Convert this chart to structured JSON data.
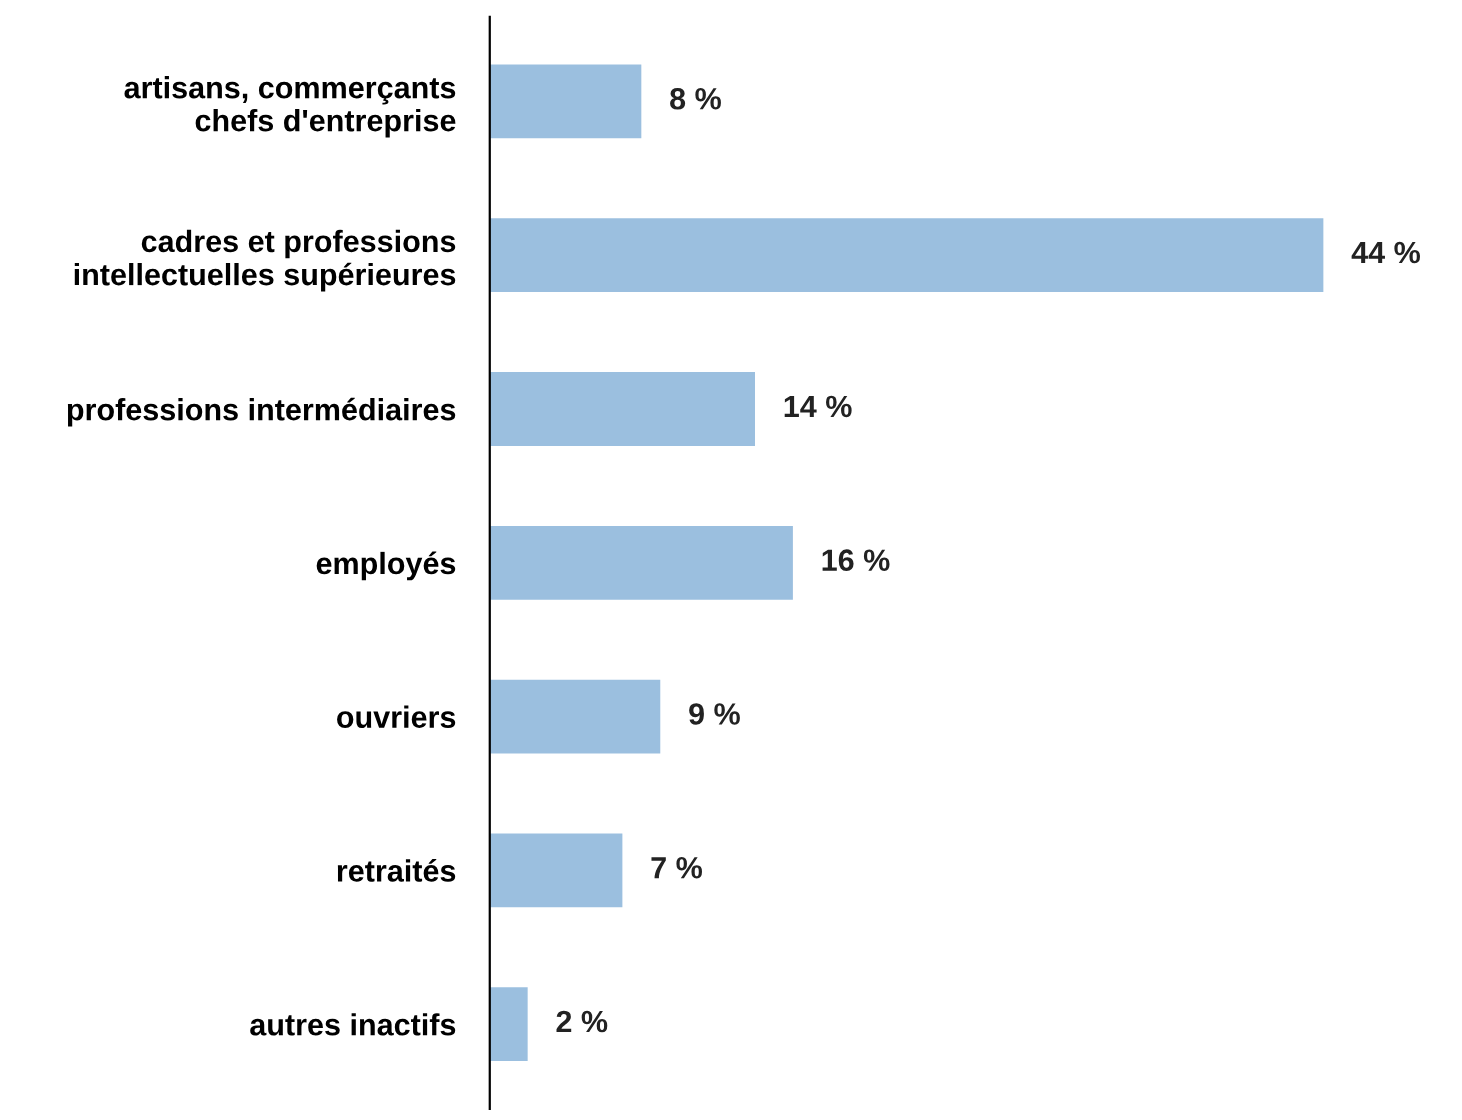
{
  "chart_data": {
    "type": "bar",
    "orientation": "horizontal",
    "categories": [
      "artisans, commerçants\nchefs d'entreprise",
      "cadres et professions\nintellectuelles supérieures",
      "professions intermédiaires",
      "employés",
      "ouvriers",
      "retraités",
      "autres inactifs"
    ],
    "values": [
      8,
      44,
      14,
      16,
      9,
      7,
      2
    ],
    "value_labels": [
      "8 %",
      "44 %",
      "14 %",
      "16 %",
      "9 %",
      "7 %",
      "2 %"
    ],
    "color": "#9bbfdf",
    "grid": false,
    "legend": false
  }
}
